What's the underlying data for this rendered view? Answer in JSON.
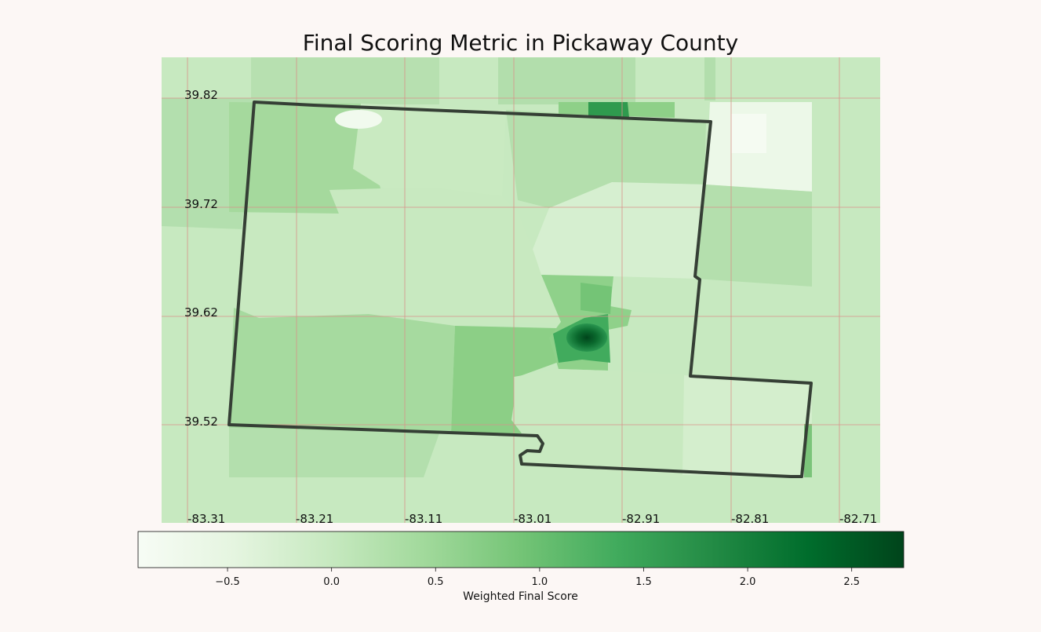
{
  "title": "Final Scoring Metric in Pickaway County",
  "map": {
    "grid_color": "#d9928a",
    "boundary_color": "#353f35",
    "lat_ticks": [
      "39.82",
      "39.72",
      "39.62",
      "39.52"
    ],
    "lon_ticks": [
      "-83.31",
      "-83.21",
      "-83.11",
      "-83.01",
      "-82.91",
      "-82.81",
      "-82.71"
    ]
  },
  "colorbar": {
    "label": "Weighted Final Score",
    "cmap": "Greens",
    "range": [
      -0.93,
      2.75
    ],
    "ticks": [
      "−0.5",
      "0.0",
      "0.5",
      "1.0",
      "1.5",
      "2.0",
      "2.5"
    ],
    "tick_values": [
      -0.5,
      0.0,
      0.5,
      1.0,
      1.5,
      2.0,
      2.5
    ],
    "colors": [
      "#f7fcf5",
      "#e5f5e0",
      "#c7e9c0",
      "#a1d99b",
      "#74c476",
      "#41ab5d",
      "#238b45",
      "#006d2c",
      "#00441b"
    ]
  }
}
